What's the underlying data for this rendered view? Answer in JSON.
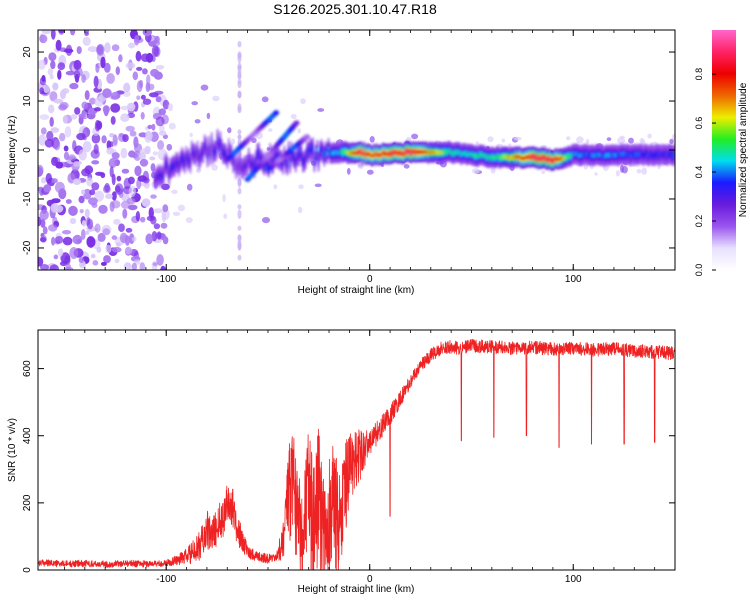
{
  "title": "S126.2025.301.10.47.R18",
  "colors": {
    "snr_line": "#ee2222",
    "axis": "#000000",
    "colormap": [
      "#ffffff",
      "#e8e0ff",
      "#9a55ee",
      "#6a1bdd",
      "#1a1aff",
      "#00ddee",
      "#22ee22",
      "#eeee00",
      "#ee6600",
      "#ee0000",
      "#ff2266",
      "#ff66cc"
    ]
  },
  "chart_data": [
    {
      "type": "heatmap",
      "name": "spectrogram",
      "xlabel": "Height of straight line (km)",
      "ylabel": "Frequency (Hz)",
      "xlim": [
        -163,
        150
      ],
      "ylim": [
        -24.5,
        24.5
      ],
      "xticks": [
        -100,
        0,
        100
      ],
      "yticks": [
        20,
        10,
        0,
        -10,
        -20
      ],
      "tick_labels_x": [
        "-100",
        "0",
        "100"
      ],
      "tick_labels_y": [
        "20",
        "10",
        "0",
        "-10",
        "-20"
      ],
      "colorbar": {
        "label": "Normalized spectral amplitude",
        "range": [
          0.0,
          0.98
        ],
        "ticks": [
          0.0,
          0.2,
          0.4,
          0.6,
          0.8
        ],
        "tick_labels": [
          "0.0",
          "0.2",
          "0.4",
          "0.6",
          "0.8"
        ]
      },
      "ridge": {
        "x": [
          -105,
          -95,
          -85,
          -75,
          -65,
          -55,
          -45,
          -35,
          -25,
          -15,
          -5,
          0,
          20,
          40,
          60,
          80,
          90,
          100,
          120,
          140,
          150
        ],
        "freq": [
          -5,
          -3,
          -1,
          1,
          -3,
          -2,
          -2,
          -1,
          -1,
          -0.5,
          -0.5,
          -1,
          -0.5,
          -0.5,
          -1.5,
          -1.5,
          -2,
          -1,
          -1,
          -1,
          -1
        ],
        "amplitude": [
          0.3,
          0.35,
          0.3,
          0.35,
          0.25,
          0.35,
          0.35,
          0.35,
          0.4,
          0.45,
          0.9,
          0.8,
          0.9,
          0.5,
          0.5,
          0.9,
          0.9,
          0.4,
          0.4,
          0.35,
          0.35
        ]
      },
      "noise_region": [
        -163,
        -100
      ]
    },
    {
      "type": "line",
      "name": "snr",
      "xlabel": "Height of straight line (km)",
      "ylabel": "SNR (10 * v/v)",
      "xlim": [
        -163,
        150
      ],
      "ylim": [
        0,
        715
      ],
      "xticks": [
        -100,
        0,
        100
      ],
      "yticks": [
        0,
        200,
        400,
        600
      ],
      "tick_labels_x": [
        "-100",
        "0",
        "100"
      ],
      "tick_labels_y": [
        "0",
        "200",
        "400",
        "600"
      ],
      "x": [
        -163,
        -150,
        -140,
        -130,
        -120,
        -110,
        -100,
        -95,
        -90,
        -85,
        -82,
        -80,
        -78,
        -75,
        -72,
        -70,
        -67,
        -65,
        -62,
        -60,
        -55,
        -50,
        -48,
        -45,
        -42,
        -40,
        -38,
        -35,
        -33,
        -30,
        -28,
        -25,
        -22,
        -20,
        -18,
        -15,
        -12,
        -10,
        -8,
        -5,
        -3,
        0,
        5,
        10,
        15,
        20,
        25,
        30,
        35,
        40,
        45,
        50,
        60,
        70,
        80,
        90,
        100,
        110,
        120,
        130,
        140,
        150
      ],
      "y": [
        22,
        18,
        20,
        17,
        20,
        18,
        20,
        30,
        40,
        60,
        90,
        120,
        100,
        130,
        160,
        210,
        180,
        120,
        80,
        55,
        40,
        35,
        30,
        40,
        120,
        200,
        250,
        200,
        90,
        250,
        130,
        210,
        120,
        170,
        190,
        150,
        240,
        300,
        320,
        340,
        360,
        380,
        420,
        460,
        510,
        560,
        610,
        640,
        660,
        665,
        660,
        668,
        665,
        660,
        664,
        658,
        662,
        655,
        660,
        652,
        650,
        645
      ],
      "noise_amp": [
        10,
        10,
        10,
        10,
        10,
        10,
        10,
        15,
        25,
        40,
        50,
        60,
        50,
        60,
        60,
        70,
        60,
        50,
        30,
        20,
        15,
        15,
        15,
        20,
        90,
        150,
        200,
        180,
        140,
        200,
        180,
        220,
        180,
        200,
        180,
        160,
        140,
        120,
        90,
        80,
        60,
        40,
        35,
        30,
        25,
        20,
        20,
        20,
        20,
        20,
        20,
        20,
        20,
        20,
        20,
        20,
        20,
        20,
        20,
        20,
        20,
        20
      ],
      "dips_x": [
        -20,
        10,
        45,
        61,
        77,
        93,
        109,
        125,
        140
      ],
      "dips_y": [
        20,
        160,
        385,
        395,
        400,
        365,
        375,
        375,
        380
      ]
    }
  ]
}
